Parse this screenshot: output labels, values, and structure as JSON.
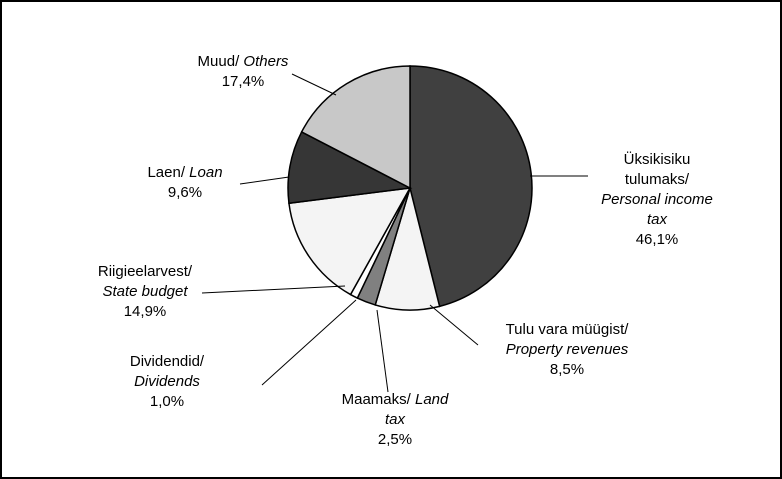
{
  "chart_data": {
    "type": "pie",
    "categories": [
      {
        "et": "Üksikisiku tulumaks/",
        "en": "Personal income tax"
      },
      {
        "et": "Tulu vara müügist/",
        "en": "Property revenues"
      },
      {
        "et": "Maamaks/",
        "en": "Land tax"
      },
      {
        "et": "Dividendid/",
        "en": "Dividends"
      },
      {
        "et": "Riigieelarvest/",
        "en": "State budget"
      },
      {
        "et": "Laen/",
        "en": "Loan"
      },
      {
        "et": "Muud/",
        "en": "Others"
      }
    ],
    "values": [
      46.1,
      8.5,
      2.5,
      1.0,
      14.9,
      9.6,
      17.4
    ],
    "value_labels": [
      "46,1%",
      "8,5%",
      "2,5%",
      "1,0%",
      "14,9%",
      "9,6%",
      "17,4%"
    ],
    "colors": [
      "#404040",
      "#f4f4f4",
      "#808080",
      "#ffffff",
      "#f4f4f4",
      "#363636",
      "#c8c8c8"
    ]
  }
}
